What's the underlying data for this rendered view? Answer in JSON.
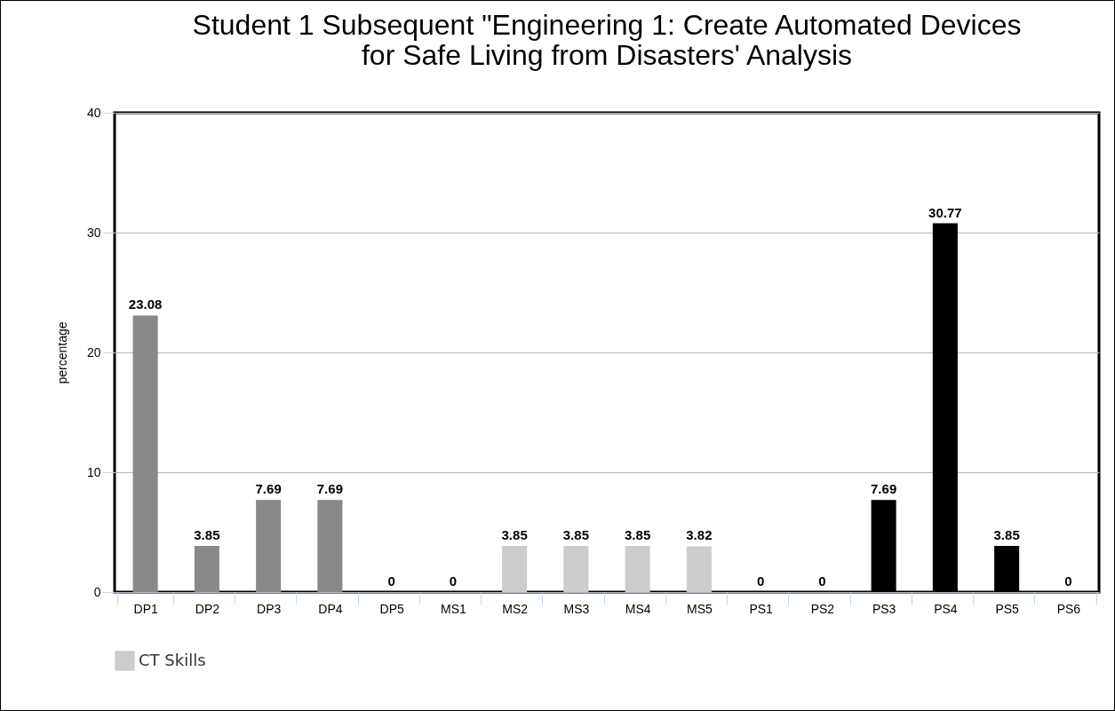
{
  "chart_data": {
    "type": "bar",
    "title": "Student 1 Subsequent \"Engineering 1: Create Automated Devices\nfor Safe Living from Disasters' Analysis",
    "ylabel": "percentage",
    "categories": [
      "DP1",
      "DP2",
      "DP3",
      "DP4",
      "DP5",
      "MS1",
      "MS2",
      "MS3",
      "MS4",
      "MS5",
      "PS1",
      "PS2",
      "PS3",
      "PS4",
      "PS5",
      "PS6"
    ],
    "series": [
      {
        "name": "CT Skills",
        "color": "#cccccc",
        "colors": [
          "#888888",
          "#888888",
          "#888888",
          "#888888",
          "#888888",
          "#cccccc",
          "#cccccc",
          "#cccccc",
          "#cccccc",
          "#cccccc",
          "#000000",
          "#000000",
          "#000000",
          "#000000",
          "#000000",
          "#000000"
        ],
        "values": [
          23.08,
          3.85,
          7.69,
          7.69,
          0,
          0,
          3.85,
          3.85,
          3.85,
          3.82,
          0,
          0,
          7.69,
          30.77,
          3.85,
          0
        ]
      }
    ],
    "ylim": [
      0,
      40
    ],
    "yticks": [
      0,
      10,
      20,
      30,
      40
    ],
    "grid": "y",
    "data_labels": true,
    "legend": "bottom"
  }
}
